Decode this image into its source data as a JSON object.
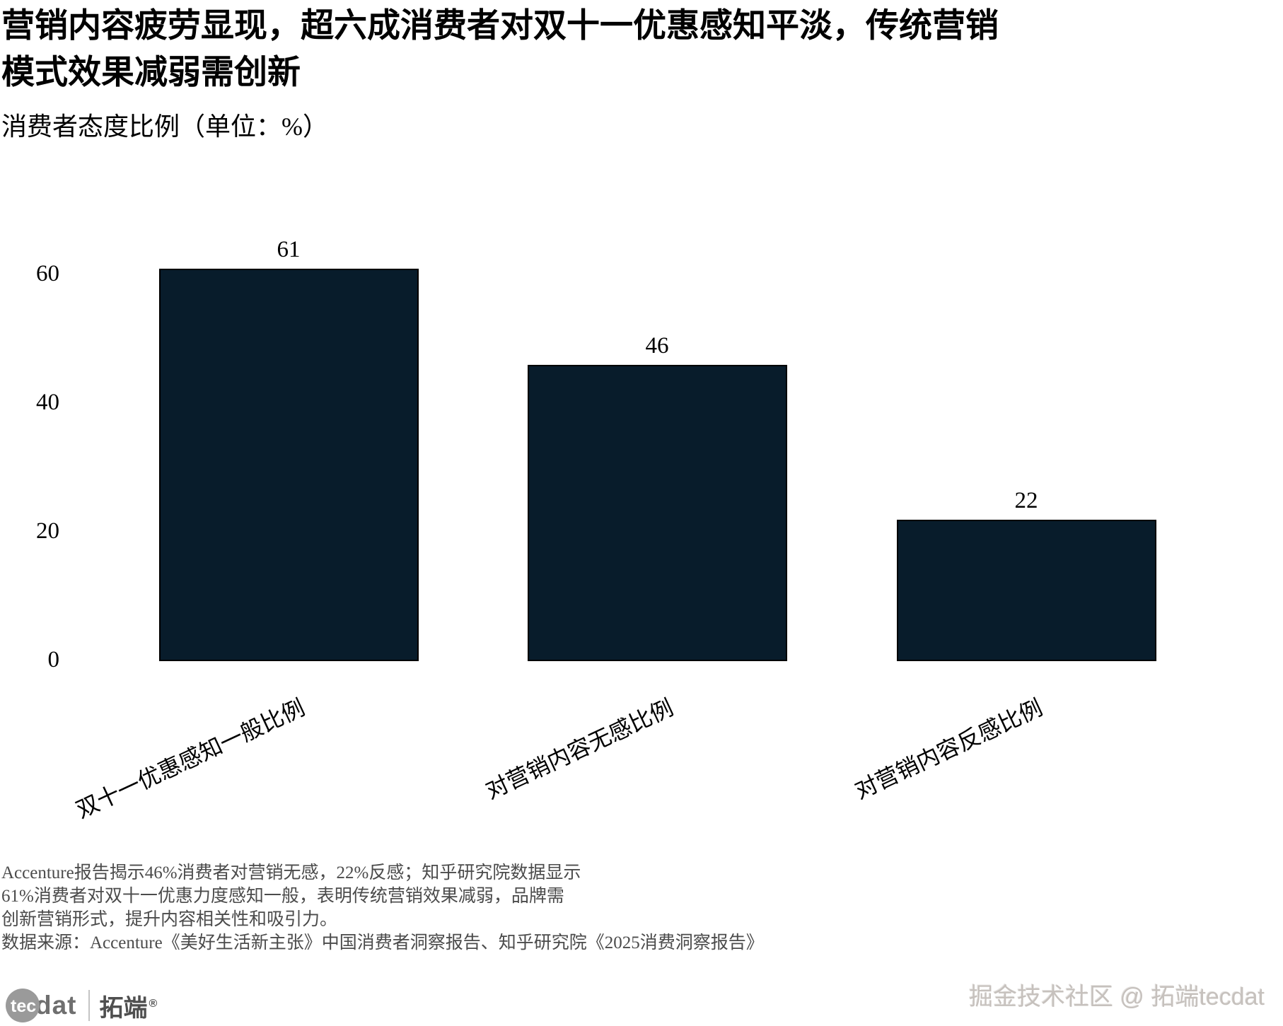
{
  "page": {
    "title": "营销内容疲劳显现，超六成消费者对双十一优惠感知平淡，传统营销模式效果减弱需创新",
    "subtitle": "消费者态度比例（单位：%）"
  },
  "chart_data": {
    "type": "bar",
    "title": "消费者态度比例",
    "unit": "%",
    "categories": [
      "双十一优惠感知一般比例",
      "对营销内容无感比例",
      "对营销内容反感比例"
    ],
    "values": [
      61,
      46,
      22
    ],
    "value_labels": [
      "61",
      "46",
      "22"
    ],
    "yticks": [
      0,
      20,
      40,
      60
    ],
    "ylim": [
      0,
      65
    ],
    "grid": false,
    "legend": "none",
    "bar_color": "#081c2b",
    "bar_edge_color": "#000000",
    "xlabel": "",
    "ylabel": ""
  },
  "footnote": {
    "lines": [
      "Accenture报告揭示46%消费者对营销无感，22%反感；知乎研究院数据显示",
      "61%消费者对双十一优惠力度感知一般，表明传统营销效果减弱，品牌需",
      "创新营销形式，提升内容相关性和吸引力。"
    ],
    "source": "数据来源：Accenture《美好生活新主张》中国消费者洞察报告、知乎研究院《2025消费洞察报告》"
  },
  "branding": {
    "logo_tec": "tec",
    "logo_dat": "dat",
    "logo_cn": "拓端",
    "logo_reg": "®",
    "watermark": "掘金技术社区 @ 拓端tecdat"
  }
}
